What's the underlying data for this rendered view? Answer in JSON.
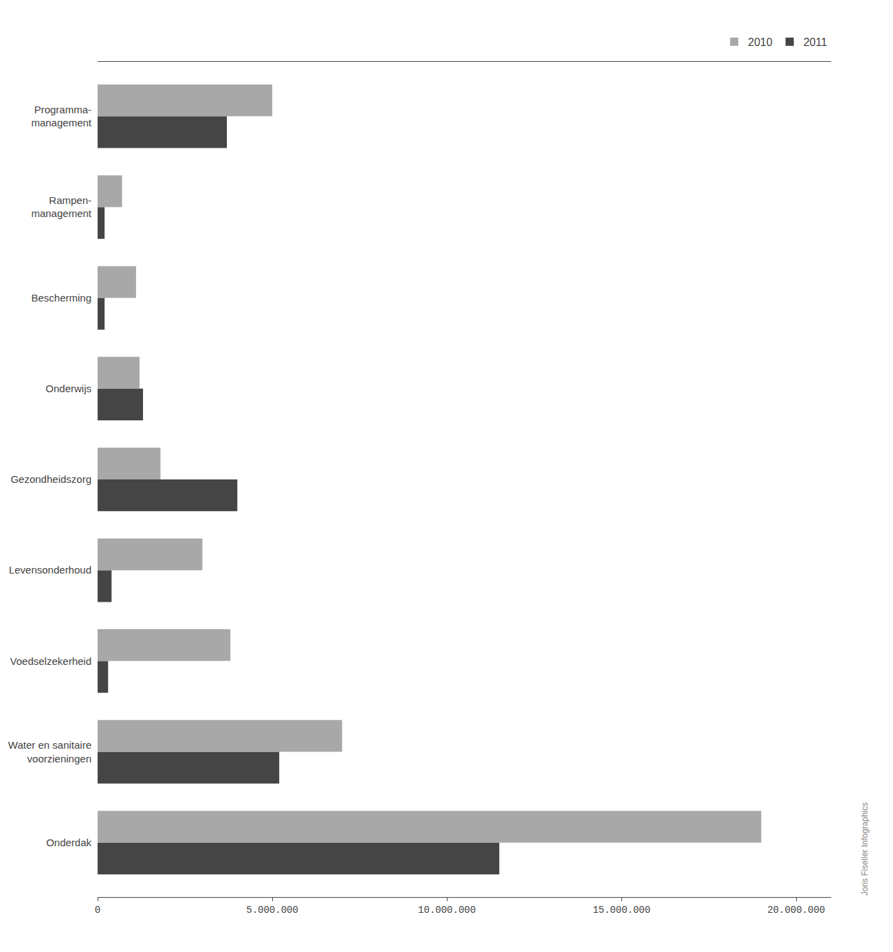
{
  "chart_data": {
    "type": "bar",
    "orientation": "horizontal",
    "categories": [
      "Onderdak",
      "Water en sanitaire\nvoorzieningen",
      "Voedselzekerheid",
      "Levensonderhoud",
      "Gezondheidszorg",
      "Onderwijs",
      "Bescherming",
      "Rampen-\nmanagement",
      "Programma-\nmanagement"
    ],
    "series": [
      {
        "name": "2010",
        "color": "#a8a8a8",
        "values": [
          19000000,
          7000000,
          3800000,
          3000000,
          1800000,
          1200000,
          1100000,
          700000,
          5000000
        ]
      },
      {
        "name": "2011",
        "color": "#454545",
        "values": [
          11500000,
          5200000,
          300000,
          400000,
          4000000,
          1300000,
          200000,
          200000,
          3700000
        ]
      }
    ],
    "xlim": [
      0,
      21000000
    ],
    "xticks": [
      0,
      {
        "value": 5000000,
        "label": "5.000.000"
      },
      {
        "value": 10000000,
        "label": "10.000.000"
      },
      {
        "value": 15000000,
        "label": "15.000.000"
      },
      {
        "value": 20000000,
        "label": "20.000.000"
      }
    ],
    "grid": false,
    "legend": "upper right",
    "annotations": [
      "Joris Fiseller Infographics"
    ]
  }
}
